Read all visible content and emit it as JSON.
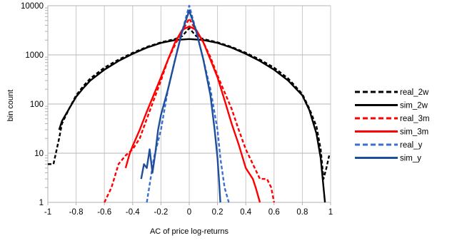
{
  "chart_data": {
    "type": "line",
    "xlabel": "AC of price log-returns",
    "ylabel": "bin count",
    "xlim": [
      -1,
      1
    ],
    "ylim": [
      1,
      10000
    ],
    "yscale": "log",
    "grid": true,
    "legend_position": "right",
    "x_ticks": [
      "-1",
      "-0.8",
      "-0.6",
      "-0.4",
      "-0.2",
      "0",
      "0.2",
      "0.4",
      "0.6",
      "0.8",
      "1"
    ],
    "y_ticks": [
      "1",
      "10",
      "100",
      "1000",
      "10000"
    ],
    "series": [
      {
        "name": "real_2w",
        "color": "#000000",
        "dash": true,
        "x": [
          -1.0,
          -0.96,
          -0.92,
          -0.9,
          -0.85,
          -0.8,
          -0.75,
          -0.7,
          -0.6,
          -0.5,
          -0.4,
          -0.3,
          -0.2,
          -0.1,
          -0.05,
          0.0,
          0.05,
          0.1,
          0.2,
          0.3,
          0.4,
          0.5,
          0.6,
          0.7,
          0.8,
          0.85,
          0.9,
          0.93,
          0.95,
          0.97,
          0.99
        ],
        "y": [
          6,
          6,
          20,
          40,
          80,
          150,
          230,
          330,
          550,
          800,
          1100,
          1450,
          1800,
          2100,
          2400,
          3500,
          2400,
          2100,
          1800,
          1450,
          1100,
          800,
          550,
          330,
          160,
          80,
          35,
          12,
          3,
          5,
          9
        ]
      },
      {
        "name": "sim_2w",
        "color": "#000000",
        "dash": false,
        "x": [
          -0.92,
          -0.9,
          -0.85,
          -0.8,
          -0.75,
          -0.7,
          -0.6,
          -0.5,
          -0.4,
          -0.3,
          -0.2,
          -0.1,
          0.0,
          0.1,
          0.2,
          0.3,
          0.4,
          0.5,
          0.6,
          0.7,
          0.8,
          0.85,
          0.9,
          0.93,
          0.95,
          0.96
        ],
        "y": [
          30,
          45,
          80,
          140,
          210,
          300,
          500,
          750,
          1050,
          1400,
          1750,
          2000,
          2100,
          2000,
          1750,
          1400,
          1050,
          750,
          500,
          300,
          150,
          75,
          25,
          8,
          2,
          1
        ]
      },
      {
        "name": "real_3m",
        "color": "#ff0000",
        "dash": true,
        "x": [
          -0.6,
          -0.55,
          -0.5,
          -0.45,
          -0.4,
          -0.35,
          -0.3,
          -0.2,
          -0.15,
          -0.1,
          -0.05,
          0.0,
          0.05,
          0.1,
          0.15,
          0.2,
          0.3,
          0.35,
          0.4,
          0.45,
          0.5,
          0.55,
          0.58,
          0.6
        ],
        "y": [
          1,
          2,
          6,
          9,
          12,
          20,
          50,
          300,
          800,
          1600,
          3000,
          5500,
          3000,
          1800,
          900,
          380,
          80,
          30,
          12,
          6,
          3,
          3,
          2,
          1
        ]
      },
      {
        "name": "sim_3m",
        "color": "#ff0000",
        "dash": false,
        "x": [
          -0.45,
          -0.42,
          -0.4,
          -0.35,
          -0.3,
          -0.2,
          -0.15,
          -0.1,
          -0.05,
          0.0,
          0.05,
          0.1,
          0.15,
          0.2,
          0.25,
          0.3,
          0.35,
          0.4,
          0.45,
          0.47,
          0.5
        ],
        "y": [
          5,
          10,
          14,
          30,
          70,
          350,
          800,
          1800,
          3200,
          3800,
          3200,
          1800,
          800,
          350,
          120,
          40,
          15,
          5,
          3,
          2,
          1
        ]
      },
      {
        "name": "real_y",
        "color": "#3b6fd1",
        "dash": true,
        "x": [
          -0.3,
          -0.25,
          -0.2,
          -0.15,
          -0.1,
          -0.05,
          0.0,
          0.05,
          0.1,
          0.15,
          0.2,
          0.22,
          0.25,
          0.28
        ],
        "y": [
          1,
          8,
          30,
          200,
          800,
          3000,
          10000,
          3000,
          800,
          200,
          30,
          8,
          2,
          1
        ]
      },
      {
        "name": "sim_y",
        "color": "#1f4e9c",
        "dash": false,
        "x": [
          -0.34,
          -0.32,
          -0.3,
          -0.28,
          -0.26,
          -0.24,
          -0.22,
          -0.2,
          -0.15,
          -0.1,
          -0.05,
          0.0,
          0.05,
          0.1,
          0.15,
          0.18,
          0.2,
          0.21,
          0.22
        ],
        "y": [
          3,
          6,
          5,
          12,
          4,
          10,
          30,
          60,
          200,
          800,
          3000,
          8000,
          3000,
          800,
          150,
          30,
          8,
          3,
          1
        ]
      }
    ]
  }
}
